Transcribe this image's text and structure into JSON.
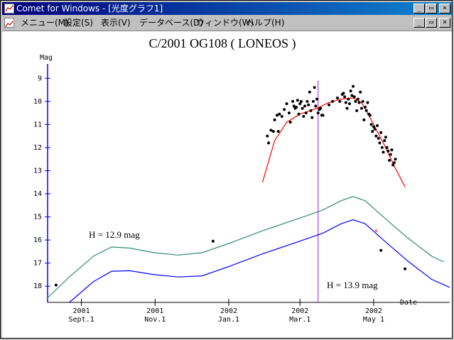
{
  "window": {
    "title": "Comet for Windows - [光度グラフ1]",
    "controls": {
      "minimize": "_",
      "restore": "▭",
      "close": "×"
    }
  },
  "menu": {
    "items": [
      "メニュー(M)",
      "設定(S)",
      "表示(V)",
      "データベース(D)",
      "ウィンドウ(W)",
      "ヘルプ(H)"
    ]
  },
  "chart_data": {
    "type": "scatter",
    "title": "C/2001 OG108 ( LONEOS )",
    "ylabel": "Mag",
    "xlabel": "Date",
    "y_inverted": true,
    "ylim": [
      8.5,
      18.7
    ],
    "yticks": [
      9,
      10,
      11,
      12,
      13,
      14,
      15,
      16,
      17,
      18
    ],
    "xticks": [
      {
        "year": "2001",
        "label": "Sept.1",
        "day": 0
      },
      {
        "year": "2001",
        "label": "Nov.1",
        "day": 61
      },
      {
        "year": "2002",
        "label": "Jan.1",
        "day": 122
      },
      {
        "year": "2002",
        "label": "Mar.1",
        "day": 181
      },
      {
        "year": "2002",
        "label": "May 1",
        "day": 242
      }
    ],
    "xlim": [
      -28,
      305
    ],
    "perihelion_day": 196,
    "annotations": [
      "H = 12.9 mag",
      "H = 13.9 mag"
    ],
    "colors": {
      "title": "#000000",
      "axis": "#0000ff",
      "predicted_h129": "#2e8b77",
      "predicted_h139": "#0000ff",
      "fit": "#ff0000",
      "perihelion": "#a020f0",
      "observations": "#000000",
      "highlight": "#ff6666"
    },
    "series": [
      {
        "name": "H = 12.9 mag",
        "points": [
          [
            -28,
            18.5
          ],
          [
            -10,
            17.6
          ],
          [
            10,
            16.7
          ],
          [
            25,
            16.3
          ],
          [
            40,
            16.35
          ],
          [
            60,
            16.55
          ],
          [
            80,
            16.65
          ],
          [
            100,
            16.55
          ],
          [
            122,
            16.15
          ],
          [
            150,
            15.6
          ],
          [
            181,
            15.05
          ],
          [
            200,
            14.7
          ],
          [
            215,
            14.3
          ],
          [
            225,
            14.12
          ],
          [
            235,
            14.3
          ],
          [
            250,
            15.0
          ],
          [
            270,
            15.9
          ],
          [
            290,
            16.7
          ],
          [
            300,
            16.95
          ]
        ]
      },
      {
        "name": "H = 13.9 mag",
        "points": [
          [
            -10,
            18.7
          ],
          [
            10,
            17.8
          ],
          [
            25,
            17.35
          ],
          [
            40,
            17.33
          ],
          [
            60,
            17.5
          ],
          [
            80,
            17.6
          ],
          [
            100,
            17.55
          ],
          [
            122,
            17.15
          ],
          [
            150,
            16.6
          ],
          [
            181,
            16.05
          ],
          [
            200,
            15.7
          ],
          [
            215,
            15.3
          ],
          [
            225,
            15.12
          ],
          [
            235,
            15.3
          ],
          [
            250,
            16.0
          ],
          [
            270,
            16.9
          ],
          [
            290,
            17.7
          ],
          [
            305,
            18.05
          ]
        ]
      },
      {
        "name": "fit",
        "points": [
          [
            150,
            13.5
          ],
          [
            160,
            11.7
          ],
          [
            170,
            10.9
          ],
          [
            181,
            10.55
          ],
          [
            195,
            10.3
          ],
          [
            205,
            10.05
          ],
          [
            215,
            9.9
          ],
          [
            225,
            9.85
          ],
          [
            232,
            10.05
          ],
          [
            240,
            10.8
          ],
          [
            250,
            11.8
          ],
          [
            260,
            12.9
          ],
          [
            268,
            13.7
          ]
        ]
      }
    ],
    "observations": [
      [
        -21,
        17.95
      ],
      [
        109,
        16.05
      ],
      [
        248,
        16.45
      ],
      [
        268,
        17.25
      ],
      [
        154,
        11.5
      ],
      [
        155,
        11.8
      ],
      [
        157,
        11.25
      ],
      [
        159,
        11.3
      ],
      [
        160,
        10.8
      ],
      [
        162,
        10.6
      ],
      [
        163,
        11.3
      ],
      [
        164,
        10.55
      ],
      [
        166,
        10.65
      ],
      [
        168,
        10.35
      ],
      [
        170,
        10.1
      ],
      [
        172,
        10.5
      ],
      [
        173,
        10.9
      ],
      [
        175,
        10.0
      ],
      [
        176,
        10.2
      ],
      [
        177,
        10.3
      ],
      [
        178,
        10.25
      ],
      [
        179,
        9.95
      ],
      [
        180,
        10.55
      ],
      [
        181,
        10.1
      ],
      [
        182,
        10.0
      ],
      [
        183,
        10.3
      ],
      [
        184,
        10.65
      ],
      [
        185,
        10.2
      ],
      [
        186,
        10.5
      ],
      [
        187,
        10.0
      ],
      [
        188,
        10.15
      ],
      [
        189,
        9.6
      ],
      [
        190,
        10.4
      ],
      [
        191,
        10.7
      ],
      [
        192,
        10.0
      ],
      [
        193,
        9.4
      ],
      [
        194,
        10.2
      ],
      [
        195,
        9.9
      ],
      [
        196,
        10.5
      ],
      [
        197,
        10.35
      ],
      [
        198,
        10.3
      ],
      [
        199,
        10.6
      ],
      [
        200,
        10.6
      ],
      [
        205,
        10.15
      ],
      [
        208,
        10.0
      ],
      [
        212,
        9.85
      ],
      [
        214,
        10.0
      ],
      [
        216,
        9.7
      ],
      [
        217,
        9.65
      ],
      [
        218,
        9.8
      ],
      [
        219,
        10.05
      ],
      [
        220,
        10.3
      ],
      [
        221,
        9.9
      ],
      [
        222,
        10.1
      ],
      [
        223,
        9.55
      ],
      [
        224,
        9.75
      ],
      [
        225,
        9.35
      ],
      [
        226,
        9.8
      ],
      [
        227,
        10.0
      ],
      [
        228,
        10.4
      ],
      [
        229,
        9.9
      ],
      [
        230,
        10.05
      ],
      [
        231,
        9.6
      ],
      [
        232,
        10.3
      ],
      [
        233,
        10.0
      ],
      [
        234,
        10.8
      ],
      [
        235,
        10.25
      ],
      [
        236,
        10.4
      ],
      [
        237,
        10.05
      ],
      [
        238,
        10.55
      ],
      [
        239,
        10.6
      ],
      [
        240,
        11.0
      ],
      [
        241,
        11.3
      ],
      [
        242,
        11.1
      ],
      [
        243,
        11.2
      ],
      [
        244,
        11.5
      ],
      [
        245,
        11.05
      ],
      [
        246,
        11.6
      ],
      [
        247,
        11.8
      ],
      [
        248,
        11.35
      ],
      [
        249,
        12.0
      ],
      [
        250,
        12.2
      ],
      [
        251,
        11.7
      ],
      [
        252,
        11.55
      ],
      [
        253,
        12.0
      ],
      [
        254,
        12.15
      ],
      [
        255,
        12.55
      ],
      [
        256,
        12.3
      ],
      [
        257,
        12.1
      ],
      [
        258,
        12.75
      ],
      [
        259,
        12.65
      ],
      [
        260,
        12.5
      ]
    ],
    "highlight_points": [
      [
        244,
        15.6
      ]
    ]
  }
}
